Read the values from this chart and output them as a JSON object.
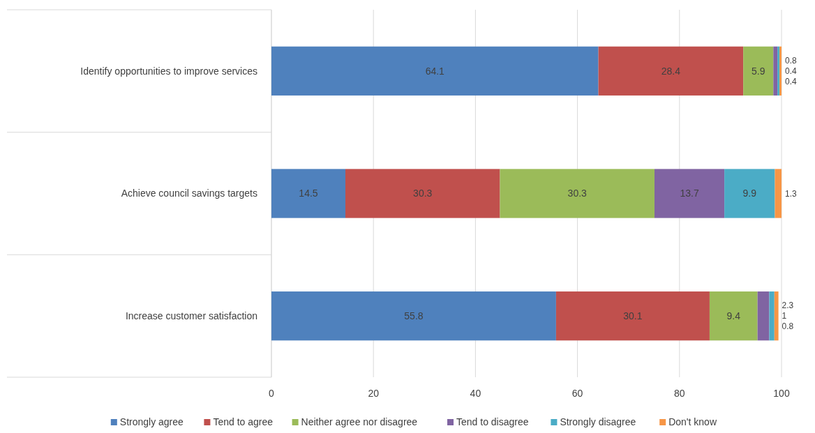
{
  "chart_data": {
    "type": "bar",
    "orientation": "horizontal",
    "stacked": true,
    "categories": [
      "Identify opportunities to improve services",
      "Achieve council savings targets",
      "Increase customer satisfaction"
    ],
    "series": [
      {
        "name": "Strongly agree",
        "color": "#4f81bd",
        "values": [
          64.1,
          14.5,
          55.8
        ]
      },
      {
        "name": "Tend to agree",
        "color": "#c0504d",
        "values": [
          28.4,
          30.3,
          30.1
        ]
      },
      {
        "name": "Neither agree nor disagree",
        "color": "#9bbb59",
        "values": [
          5.9,
          30.3,
          9.4
        ]
      },
      {
        "name": "Tend to disagree",
        "color": "#8064a2",
        "values": [
          0.8,
          13.7,
          2.3
        ]
      },
      {
        "name": "Strongly disagree",
        "color": "#4bacc6",
        "values": [
          0.4,
          9.9,
          1.0
        ]
      },
      {
        "name": "Don't know",
        "color": "#f79646",
        "values": [
          0.4,
          1.3,
          0.8
        ]
      }
    ],
    "xlim": [
      0,
      100
    ],
    "xticks": [
      0,
      20,
      40,
      60,
      80,
      100
    ],
    "grid": "x",
    "legend": "bottom",
    "data_labels": true
  }
}
